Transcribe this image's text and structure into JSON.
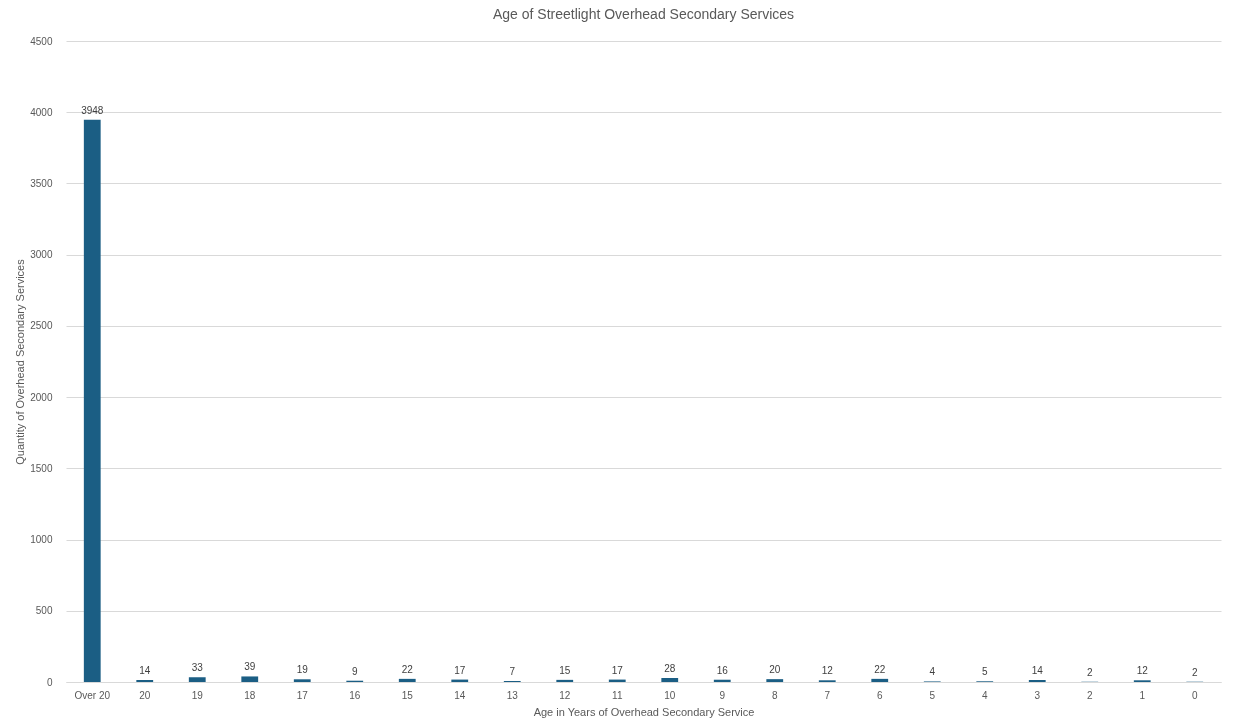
{
  "chart_data": {
    "type": "bar",
    "title": "Age of Streetlight Overhead Secondary Services",
    "xlabel": "Age in Years of Overhead Secondary Service",
    "ylabel": "Quantity of Overhead Secondary Services",
    "categories": [
      "Over 20",
      "20",
      "19",
      "18",
      "17",
      "16",
      "15",
      "14",
      "13",
      "12",
      "11",
      "10",
      "9",
      "8",
      "7",
      "6",
      "5",
      "4",
      "3",
      "2",
      "1",
      "0"
    ],
    "values": [
      3948,
      14,
      33,
      39,
      19,
      9,
      22,
      17,
      7,
      15,
      17,
      28,
      16,
      20,
      12,
      22,
      4,
      5,
      14,
      2,
      12,
      2
    ],
    "color": "#1b5e84",
    "ylim": [
      0,
      4500
    ],
    "yticks": [
      0,
      500,
      1000,
      1500,
      2000,
      2500,
      3000,
      3500,
      4000,
      4500
    ],
    "grid": "y",
    "data_labels": true
  }
}
